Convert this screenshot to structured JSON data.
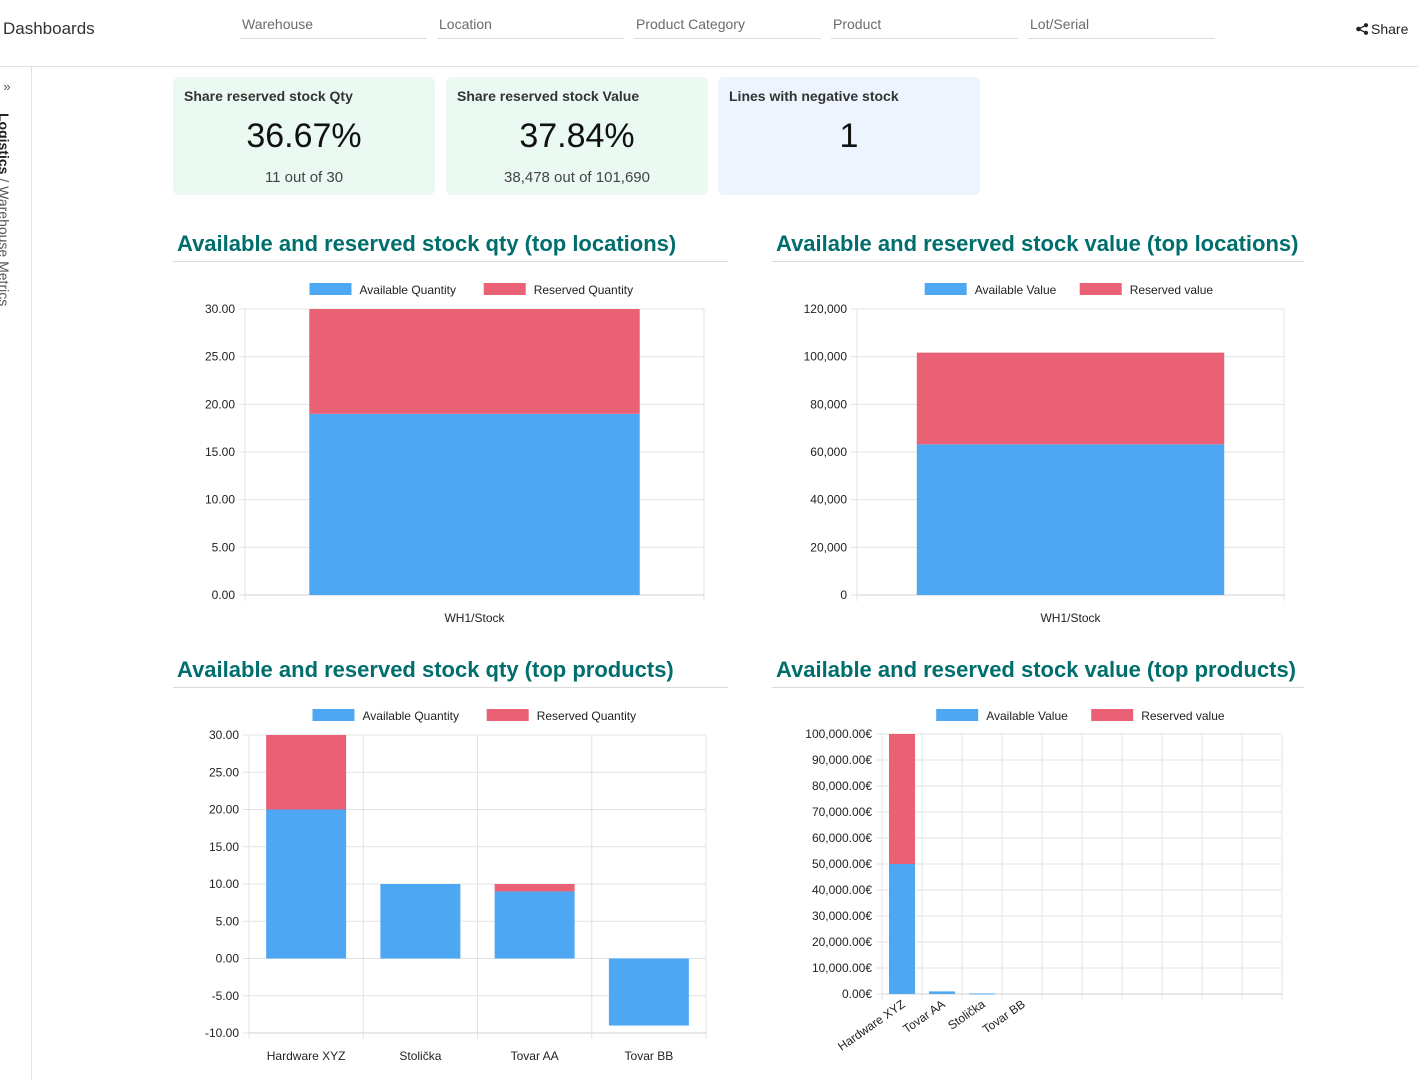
{
  "header": {
    "app_title": "Dashboards",
    "share_label": "Share",
    "filters": [
      "Warehouse",
      "Location",
      "Product Category",
      "Product",
      "Lot/Serial"
    ]
  },
  "sidebar": {
    "collapse_glyph": "»",
    "breadcrumb_root": "Logistics",
    "breadcrumb_separator": " / ",
    "breadcrumb_current": "Warehouse Metrics"
  },
  "kpis": [
    {
      "title": "Share reserved stock Qty",
      "value": "36.67%",
      "sub": "11 out of 30"
    },
    {
      "title": "Share reserved stock Value",
      "value": "37.84%",
      "sub": "38,478 out of 101,690"
    },
    {
      "title": "Lines with negative stock",
      "value": "1",
      "sub": ""
    }
  ],
  "colors": {
    "available": "#4ea7f2",
    "reserved": "#ea6175",
    "kpi_green": "#eaf9f1",
    "kpi_blue": "#edf4fe",
    "title_teal": "#016e6e"
  },
  "chart_data": [
    {
      "type": "bar",
      "stacked": true,
      "title": "Available and reserved stock qty (top locations)",
      "categories": [
        "WH1/Stock"
      ],
      "series": [
        {
          "name": "Available Quantity",
          "values": [
            19
          ]
        },
        {
          "name": "Reserved Quantity",
          "values": [
            11
          ]
        }
      ],
      "ylim": [
        0,
        30
      ],
      "yticks": [
        0,
        5,
        10,
        15,
        20,
        25,
        30
      ],
      "ytick_labels": [
        "0.00",
        "5.00",
        "10.00",
        "15.00",
        "20.00",
        "25.00",
        "30.00"
      ],
      "legend": "top-center",
      "grid": true
    },
    {
      "type": "bar",
      "stacked": true,
      "title": "Available and reserved stock value (top locations)",
      "categories": [
        "WH1/Stock"
      ],
      "series": [
        {
          "name": "Available Value",
          "values": [
            63212
          ]
        },
        {
          "name": "Reserved value",
          "values": [
            38478
          ]
        }
      ],
      "ylim": [
        0,
        120000
      ],
      "yticks": [
        0,
        20000,
        40000,
        60000,
        80000,
        100000,
        120000
      ],
      "ytick_labels": [
        "0",
        "20,000",
        "40,000",
        "60,000",
        "80,000",
        "100,000",
        "120,000"
      ],
      "legend": "top-center",
      "grid": true
    },
    {
      "type": "bar",
      "stacked": true,
      "title": "Available and reserved stock qty (top products)",
      "categories": [
        "Hardware XYZ",
        "Stolička",
        "Tovar AA",
        "Tovar BB"
      ],
      "series": [
        {
          "name": "Available Quantity",
          "values": [
            20,
            10,
            9,
            -9
          ]
        },
        {
          "name": "Reserved Quantity",
          "values": [
            10,
            0,
            1,
            0
          ]
        }
      ],
      "ylim": [
        -10,
        30
      ],
      "yticks": [
        -10,
        -5,
        0,
        5,
        10,
        15,
        20,
        25,
        30
      ],
      "ytick_labels": [
        "-10.00",
        "-5.00",
        "0.00",
        "5.00",
        "10.00",
        "15.00",
        "20.00",
        "25.00",
        "30.00"
      ],
      "legend": "top-center",
      "grid": true
    },
    {
      "type": "bar",
      "stacked": true,
      "title": "Available and reserved stock value (top products)",
      "categories": [
        "Hardware XYZ",
        "Tovar AA",
        "Stolička",
        "Tovar BB"
      ],
      "series": [
        {
          "name": "Available Value",
          "values": [
            50000,
            1000,
            200,
            0
          ]
        },
        {
          "name": "Reserved value",
          "values": [
            50000,
            0,
            0,
            0
          ]
        }
      ],
      "ylim": [
        0,
        100000
      ],
      "yticks": [
        0,
        10000,
        20000,
        30000,
        40000,
        50000,
        60000,
        70000,
        80000,
        90000,
        100000
      ],
      "ytick_labels": [
        "0.00€",
        "10,000.00€",
        "20,000.00€",
        "30,000.00€",
        "40,000.00€",
        "50,000.00€",
        "60,000.00€",
        "70,000.00€",
        "80,000.00€",
        "90,000.00€",
        "100,000.00€"
      ],
      "legend": "top-center",
      "grid": true
    }
  ]
}
